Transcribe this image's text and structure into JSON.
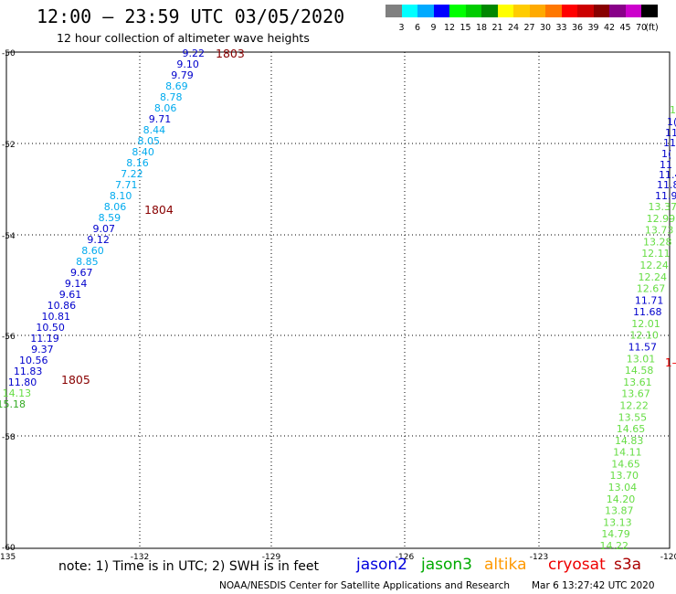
{
  "header": {
    "title": "12:00 – 23:59 UTC 03/05/2020",
    "subtitle": "12 hour collection of altimeter wave heights"
  },
  "colorbar": {
    "labels": [
      "3",
      "6",
      "9",
      "12",
      "15",
      "18",
      "21",
      "24",
      "27",
      "30",
      "33",
      "36",
      "39",
      "42",
      "45",
      "70",
      "(ft)"
    ],
    "colors": [
      "#808080",
      "#00ffff",
      "#00aaff",
      "#0000ff",
      "#00ff00",
      "#00cc00",
      "#008800",
      "#ffff00",
      "#ffcc00",
      "#ffaa00",
      "#ff7700",
      "#ff0000",
      "#cc0000",
      "#880000",
      "#880088",
      "#cc00cc",
      "#000000"
    ]
  },
  "axes": {
    "lat_labels": [
      "-50",
      "-52",
      "-54",
      "-56",
      "-58",
      "-60"
    ],
    "lon_labels": [
      "-135",
      "-132",
      "-129",
      "-126",
      "-123",
      "-120"
    ]
  },
  "tracks": {
    "west": {
      "heights": [
        "9.22",
        "9.10",
        "9.79",
        "8.69",
        "8.78",
        "8.06",
        "9.71",
        "8.44",
        "8.05",
        "8.40",
        "8.16",
        "7.22",
        "7.71",
        "8.10",
        "8.06",
        "8.59",
        "9.07",
        "9.12",
        "8.60",
        "8.85",
        "9.67",
        "9.14",
        "9.61",
        "10.86",
        "10.81",
        "10.50",
        "11.19",
        "9.37",
        "10.56",
        "11.83",
        "11.80",
        "14.13",
        "15.18"
      ],
      "colors": [
        "#0000cc",
        "#0000cc",
        "#0000cc",
        "#00aaee",
        "#00aaee",
        "#00aaee",
        "#0000cc",
        "#00aaee",
        "#00aaee",
        "#00aaee",
        "#00aaee",
        "#00aaee",
        "#00aaee",
        "#00aaee",
        "#00aaee",
        "#00aaee",
        "#0000cc",
        "#0000cc",
        "#00aaee",
        "#00aaee",
        "#0000cc",
        "#0000cc",
        "#0000cc",
        "#0000cc",
        "#0000cc",
        "#0000cc",
        "#0000cc",
        "#0000cc",
        "#0000cc",
        "#0000cc",
        "#0000cc",
        "#66dd44",
        "#33aa22"
      ]
    },
    "east": {
      "heights": [
        "13.37",
        "12.99",
        "13.73",
        "13.28",
        "12.11",
        "12.24",
        "12.24",
        "12.67",
        "11.71",
        "11.68",
        "12.01",
        "12.10",
        "11.57",
        "13.01",
        "14.58",
        "13.61",
        "13.67",
        "12.22",
        "13.55",
        "14.65",
        "14.83",
        "14.11",
        "14.65",
        "13.70",
        "13.04",
        "14.20",
        "13.87",
        "13.13",
        "14.79",
        "14.22"
      ],
      "colors": [
        "#66dd44",
        "#66dd44",
        "#66dd44",
        "#66dd44",
        "#66dd44",
        "#66dd44",
        "#66dd44",
        "#66dd44",
        "#0000cc",
        "#0000cc",
        "#66dd44",
        "#66dd44",
        "#0000cc",
        "#66dd44",
        "#66dd44",
        "#66dd44",
        "#66dd44",
        "#66dd44",
        "#66dd44",
        "#66dd44",
        "#66dd44",
        "#66dd44",
        "#66dd44",
        "#66dd44",
        "#66dd44",
        "#66dd44",
        "#66dd44",
        "#66dd44",
        "#66dd44",
        "#66dd44"
      ],
      "clipped": [
        "1",
        "1(",
        "11",
        "11",
        "1(",
        "11",
        "11.4",
        "11.8",
        "11.9"
      ],
      "clipped_colors": [
        "#66dd44",
        "#0000cc",
        "#0000cc",
        "#0000cc",
        "#0000cc",
        "#0000cc",
        "#0000cc",
        "#0000cc",
        "#0000cc"
      ],
      "edge_label": "1–"
    },
    "times": [
      "1803",
      "1804",
      "1805"
    ]
  },
  "footer": {
    "note": "note:  1) Time is in UTC;  2) SWH is in feet",
    "satellites": [
      {
        "name": "jason2",
        "color": "#0000dd"
      },
      {
        "name": "jason3",
        "color": "#00aa00"
      },
      {
        "name": "altika",
        "color": "#ff9900"
      },
      {
        "name": "cryosat",
        "color": "#ee0000"
      },
      {
        "name": "s3a",
        "color": "#aa0000"
      }
    ],
    "credit": "NOAA/NESDIS Center for Satellite Applications and Research",
    "timestamp": "Mar  6 13:27:42 UTC 2020"
  }
}
